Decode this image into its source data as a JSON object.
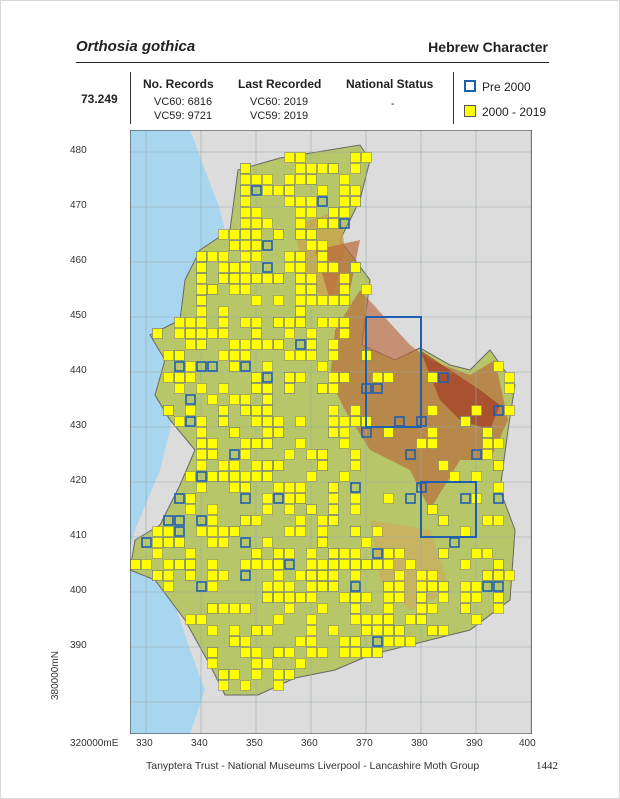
{
  "header": {
    "species": "Orthosia gothica",
    "vernacular": "Hebrew Character",
    "code": "73.249"
  },
  "records": {
    "heading": "No. Records",
    "vc60": "VC60: 6816",
    "vc59": "VC59: 9721"
  },
  "last_recorded": {
    "heading": "Last Recorded",
    "vc60": "VC60: 2019",
    "vc59": "VC59: 2019"
  },
  "national_status": {
    "heading": "National Status",
    "value": "-"
  },
  "legend": {
    "pre": "Pre   2000",
    "post": "2000 - 2019",
    "pre_color": "#1f5fb0",
    "post_color": "#ffff00"
  },
  "axes": {
    "x_labels": [
      "320000mE",
      "330",
      "340",
      "350",
      "360",
      "370",
      "380",
      "390",
      "400"
    ],
    "y_labels": [
      "480",
      "470",
      "460",
      "450",
      "440",
      "430",
      "420",
      "410",
      "400",
      "390",
      "380000mN"
    ]
  },
  "footer": "Tanyptera Trust - National Museums Liverpool - Lancashire Moth Group",
  "page_number": "1442"
}
